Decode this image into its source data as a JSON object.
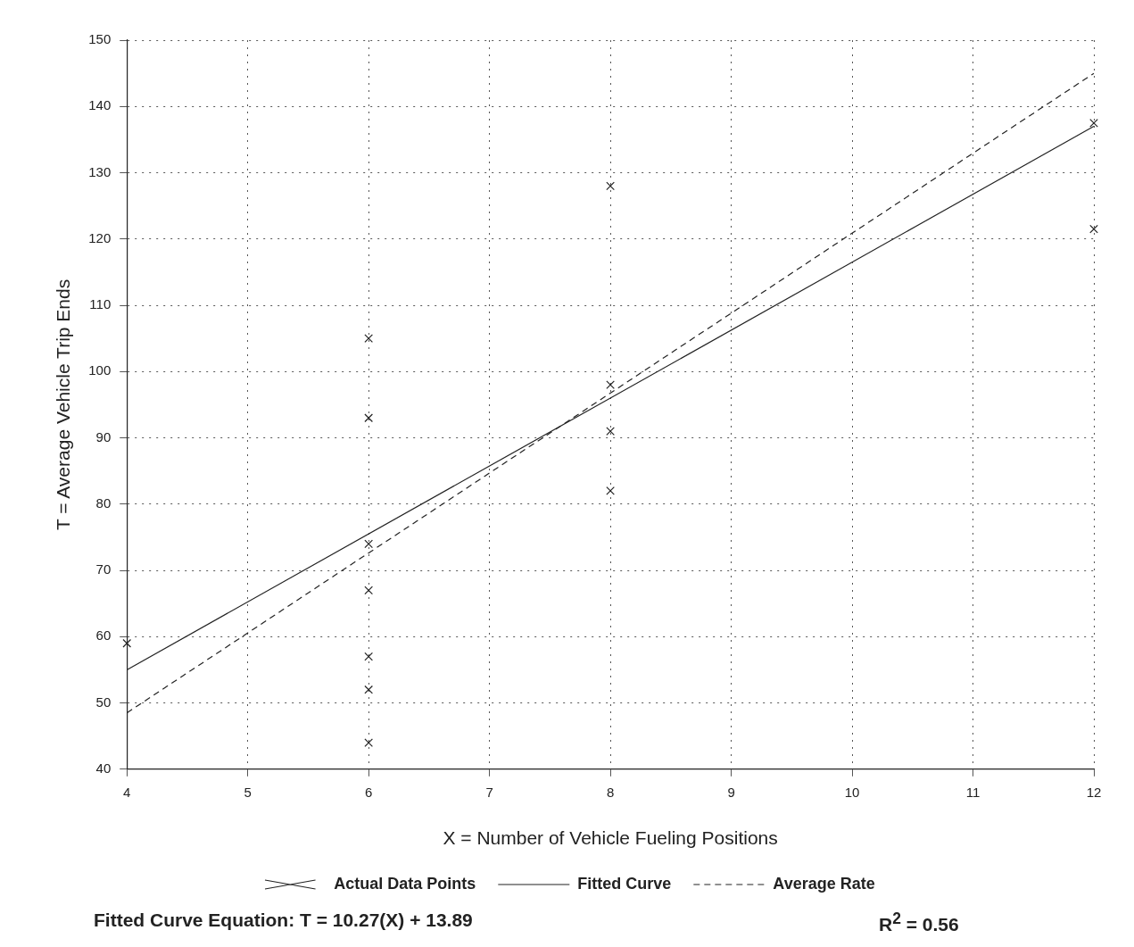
{
  "chart_data": {
    "type": "scatter",
    "xlabel": "X = Number of Vehicle Fueling Positions",
    "ylabel": "T = Average Vehicle Trip Ends",
    "xlim": [
      4,
      12
    ],
    "xticks": [
      4,
      5,
      6,
      7,
      8,
      9,
      10,
      11,
      12
    ],
    "ylim": [
      40,
      150
    ],
    "yticks": [
      40,
      50,
      60,
      70,
      80,
      90,
      100,
      110,
      120,
      130,
      140,
      150
    ],
    "grid": true,
    "legend": "bottom",
    "series": [
      {
        "name": "Actual Data Points",
        "type": "scatter",
        "color": "#222222",
        "marker": "cross",
        "x": [
          4,
          6,
          6,
          6,
          6,
          6,
          6,
          6,
          8,
          8,
          8,
          8,
          12,
          12
        ],
        "values": [
          59,
          105,
          93,
          74,
          67,
          57,
          52,
          44,
          128,
          98,
          91,
          82,
          137.5,
          121.5
        ]
      },
      {
        "name": "Fitted Curve",
        "type": "line",
        "color": "#222222",
        "line_style": "solid",
        "marker": "none",
        "x": [
          4,
          12
        ],
        "values": [
          55,
          137
        ]
      },
      {
        "name": "Average Rate",
        "type": "line",
        "color": "#222222",
        "line_style": "dashed",
        "marker": "none",
        "x": [
          4,
          12
        ],
        "values": [
          48.5,
          145
        ]
      }
    ],
    "annotations": [
      "Fitted Curve Equation:  T = 10.27(X) + 13.89",
      "R$^{2}$ = 0.56"
    ]
  }
}
